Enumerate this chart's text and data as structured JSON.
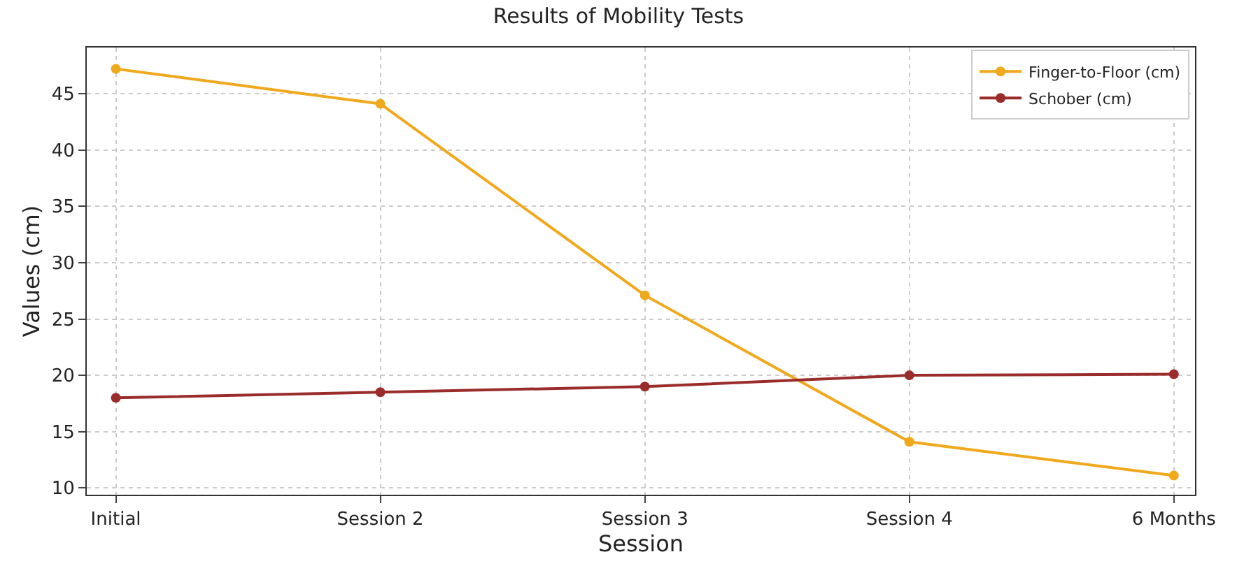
{
  "chart_data": {
    "type": "line",
    "title": "Results of Mobility Tests",
    "xlabel": "Session",
    "ylabel": "Values (cm)",
    "categories": [
      "Initial",
      "Session 2",
      "Session 3",
      "Session 4",
      "6 Months"
    ],
    "series": [
      {
        "name": "Finger-to-Floor (cm)",
        "color": "#f0a81c",
        "values": [
          47.2,
          44.1,
          27.1,
          14.1,
          11.1
        ]
      },
      {
        "name": "Schober (cm)",
        "color": "#9b2c2c",
        "values": [
          18.0,
          18.5,
          19.0,
          20.0,
          20.1
        ]
      }
    ],
    "ylim": [
      9.4,
      49.1
    ],
    "yticks": [
      10,
      15,
      20,
      25,
      30,
      35,
      40,
      45
    ],
    "grid": true,
    "legend": "top right",
    "marker": "circle",
    "line_style": "solid"
  }
}
